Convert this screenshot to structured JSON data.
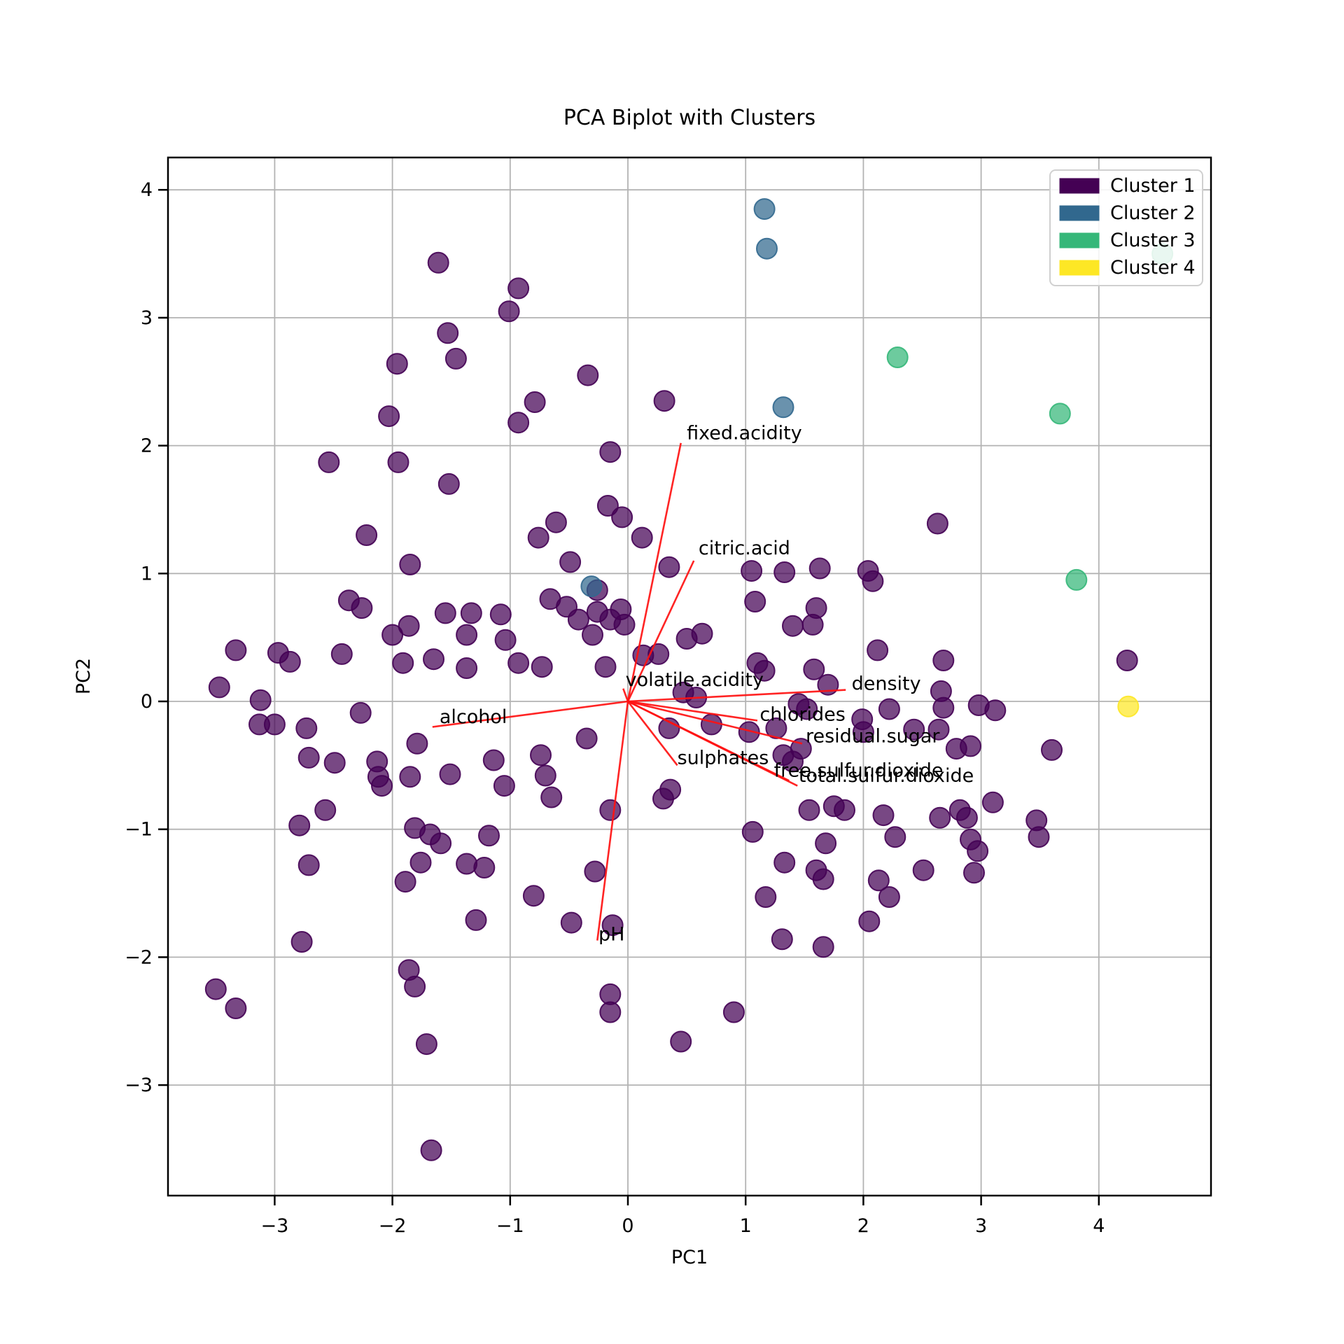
{
  "title": "PCA Biplot with Clusters",
  "axes": {
    "xlabel": "PC1",
    "ylabel": "PC2",
    "x_ticks": [
      -3,
      -2,
      -1,
      0,
      1,
      2,
      3,
      4
    ],
    "y_ticks": [
      -3,
      -2,
      -1,
      0,
      1,
      2,
      3,
      4
    ],
    "x_tick_labels": [
      "−3",
      "−2",
      "−1",
      "0",
      "1",
      "2",
      "3",
      "4"
    ],
    "y_tick_labels": [
      "−3",
      "−2",
      "−1",
      "0",
      "1",
      "2",
      "3",
      "4"
    ],
    "xlim": [
      -3.92,
      4.96
    ],
    "ylim": [
      -3.86,
      4.25
    ],
    "grid": true,
    "grid_color": "#b3b3b3",
    "spine_color": "#000000"
  },
  "legend": {
    "position": "upper right",
    "items": [
      {
        "label": "Cluster 1",
        "color": "#440154"
      },
      {
        "label": "Cluster 2",
        "color": "#31688e"
      },
      {
        "label": "Cluster 3",
        "color": "#35b779"
      },
      {
        "label": "Cluster 4",
        "color": "#fde725"
      }
    ]
  },
  "chart_data": {
    "type": "scatter",
    "title": "PCA Biplot with Clusters",
    "xlabel": "PC1",
    "ylabel": "PC2",
    "xlim": [
      -3.92,
      4.96
    ],
    "ylim": [
      -3.86,
      4.25
    ],
    "grid": true,
    "legend_position": "upper right",
    "marker_radius_px": 14.5,
    "marker_alpha": 0.72,
    "arrow_color": "#ff1111",
    "series": [
      {
        "name": "Cluster 1",
        "color": "#440154",
        "points": [
          [
            -1.61,
            3.43
          ],
          [
            -0.93,
            3.23
          ],
          [
            -1.01,
            3.05
          ],
          [
            -1.53,
            2.88
          ],
          [
            -1.46,
            2.68
          ],
          [
            -1.96,
            2.64
          ],
          [
            -0.34,
            2.55
          ],
          [
            -0.79,
            2.34
          ],
          [
            0.31,
            2.35
          ],
          [
            -2.03,
            2.23
          ],
          [
            -0.93,
            2.18
          ],
          [
            -0.15,
            1.95
          ],
          [
            -2.54,
            1.87
          ],
          [
            -1.95,
            1.87
          ],
          [
            -1.52,
            1.7
          ],
          [
            -0.17,
            1.53
          ],
          [
            -0.05,
            1.44
          ],
          [
            -0.61,
            1.4
          ],
          [
            -2.22,
            1.3
          ],
          [
            -0.76,
            1.28
          ],
          [
            0.12,
            1.28
          ],
          [
            -1.85,
            1.07
          ],
          [
            -0.49,
            1.09
          ],
          [
            0.35,
            1.05
          ],
          [
            -0.26,
            0.87
          ],
          [
            -2.37,
            0.79
          ],
          [
            -2.26,
            0.73
          ],
          [
            -1.55,
            0.69
          ],
          [
            -1.33,
            0.69
          ],
          [
            -1.08,
            0.68
          ],
          [
            -0.66,
            0.8
          ],
          [
            -0.52,
            0.74
          ],
          [
            -1.86,
            0.59
          ],
          [
            -2.0,
            0.52
          ],
          [
            -0.42,
            0.64
          ],
          [
            -0.3,
            0.52
          ],
          [
            -1.37,
            0.52
          ],
          [
            -1.04,
            0.48
          ],
          [
            -3.33,
            0.4
          ],
          [
            -2.97,
            0.38
          ],
          [
            -2.87,
            0.31
          ],
          [
            -2.43,
            0.37
          ],
          [
            -1.65,
            0.33
          ],
          [
            -1.91,
            0.3
          ],
          [
            -1.37,
            0.26
          ],
          [
            -0.93,
            0.3
          ],
          [
            -0.73,
            0.27
          ],
          [
            -0.19,
            0.27
          ],
          [
            -3.47,
            0.11
          ],
          [
            -3.12,
            0.01
          ],
          [
            -2.27,
            -0.09
          ],
          [
            -3.13,
            -0.18
          ],
          [
            -3.0,
            -0.18
          ],
          [
            -2.73,
            -0.21
          ],
          [
            -1.79,
            -0.33
          ],
          [
            -2.71,
            -0.44
          ],
          [
            -2.49,
            -0.48
          ],
          [
            -2.13,
            -0.47
          ],
          [
            -2.12,
            -0.59
          ],
          [
            -2.09,
            -0.66
          ],
          [
            -1.85,
            -0.59
          ],
          [
            -1.51,
            -0.57
          ],
          [
            -1.14,
            -0.46
          ],
          [
            -1.05,
            -0.66
          ],
          [
            -0.74,
            -0.42
          ],
          [
            -0.7,
            -0.58
          ],
          [
            -0.65,
            -0.75
          ],
          [
            -0.35,
            -0.29
          ],
          [
            -2.57,
            -0.85
          ],
          [
            -2.79,
            -0.97
          ],
          [
            -1.81,
            -0.99
          ],
          [
            -1.68,
            -1.04
          ],
          [
            -1.59,
            -1.11
          ],
          [
            -1.18,
            -1.05
          ],
          [
            -0.15,
            -0.85
          ],
          [
            -0.26,
            0.7
          ],
          [
            -0.15,
            0.64
          ],
          [
            -0.06,
            0.72
          ],
          [
            -0.03,
            0.6
          ],
          [
            0.13,
            0.36
          ],
          [
            0.26,
            0.37
          ],
          [
            0.5,
            0.49
          ],
          [
            0.63,
            0.53
          ],
          [
            0.47,
            0.07
          ],
          [
            0.58,
            0.03
          ],
          [
            0.35,
            -0.21
          ],
          [
            0.36,
            -0.69
          ],
          [
            0.3,
            -0.76
          ],
          [
            2.63,
            1.39
          ],
          [
            1.05,
            1.02
          ],
          [
            1.33,
            1.01
          ],
          [
            1.63,
            1.04
          ],
          [
            2.04,
            1.02
          ],
          [
            2.08,
            0.94
          ],
          [
            1.08,
            0.78
          ],
          [
            1.6,
            0.73
          ],
          [
            1.57,
            0.6
          ],
          [
            1.4,
            0.59
          ],
          [
            2.12,
            0.4
          ],
          [
            2.68,
            0.32
          ],
          [
            4.24,
            0.32
          ],
          [
            1.1,
            0.3
          ],
          [
            1.16,
            0.24
          ],
          [
            1.58,
            0.25
          ],
          [
            1.7,
            0.13
          ],
          [
            2.98,
            -0.03
          ],
          [
            2.66,
            0.08
          ],
          [
            2.68,
            -0.05
          ],
          [
            0.71,
            -0.18
          ],
          [
            1.03,
            -0.24
          ],
          [
            1.26,
            -0.21
          ],
          [
            1.32,
            -0.42
          ],
          [
            1.4,
            -0.47
          ],
          [
            1.47,
            -0.37
          ],
          [
            1.99,
            -0.14
          ],
          [
            2.0,
            -0.24
          ],
          [
            2.43,
            -0.22
          ],
          [
            2.64,
            -0.22
          ],
          [
            2.79,
            -0.37
          ],
          [
            2.91,
            -0.35
          ],
          [
            3.12,
            -0.07
          ],
          [
            3.6,
            -0.38
          ],
          [
            2.22,
            -0.06
          ],
          [
            1.45,
            -0.02
          ],
          [
            1.52,
            -0.06
          ],
          [
            3.1,
            -0.79
          ],
          [
            2.82,
            -0.85
          ],
          [
            2.88,
            -0.91
          ],
          [
            3.47,
            -0.93
          ],
          [
            1.75,
            -0.82
          ],
          [
            1.84,
            -0.85
          ],
          [
            1.54,
            -0.85
          ],
          [
            2.17,
            -0.89
          ],
          [
            2.65,
            -0.91
          ],
          [
            1.06,
            -1.02
          ],
          [
            1.68,
            -1.11
          ],
          [
            2.27,
            -1.06
          ],
          [
            2.91,
            -1.08
          ],
          [
            2.97,
            -1.17
          ],
          [
            3.49,
            -1.06
          ],
          [
            -2.71,
            -1.28
          ],
          [
            -1.89,
            -1.41
          ],
          [
            -1.76,
            -1.26
          ],
          [
            -1.37,
            -1.27
          ],
          [
            -1.22,
            -1.3
          ],
          [
            -0.28,
            -1.33
          ],
          [
            -0.8,
            -1.52
          ],
          [
            -1.29,
            -1.71
          ],
          [
            -0.48,
            -1.73
          ],
          [
            -0.13,
            -1.75
          ],
          [
            -2.77,
            -1.88
          ],
          [
            -3.5,
            -2.25
          ],
          [
            -3.33,
            -2.4
          ],
          [
            -1.86,
            -2.1
          ],
          [
            -1.81,
            -2.23
          ],
          [
            -0.15,
            -2.29
          ],
          [
            -0.15,
            -2.43
          ],
          [
            -1.71,
            -2.68
          ],
          [
            0.45,
            -2.66
          ],
          [
            -1.67,
            -3.51
          ],
          [
            1.33,
            -1.26
          ],
          [
            1.17,
            -1.53
          ],
          [
            1.6,
            -1.32
          ],
          [
            1.66,
            -1.39
          ],
          [
            2.13,
            -1.4
          ],
          [
            2.22,
            -1.53
          ],
          [
            2.51,
            -1.32
          ],
          [
            2.94,
            -1.34
          ],
          [
            2.05,
            -1.72
          ],
          [
            1.31,
            -1.86
          ],
          [
            1.66,
            -1.92
          ],
          [
            0.9,
            -2.43
          ]
        ]
      },
      {
        "name": "Cluster 2",
        "color": "#31688e",
        "points": [
          [
            1.16,
            3.85
          ],
          [
            1.18,
            3.54
          ],
          [
            1.32,
            2.3
          ],
          [
            -0.31,
            0.9
          ]
        ]
      },
      {
        "name": "Cluster 3",
        "color": "#35b779",
        "points": [
          [
            2.29,
            2.69
          ],
          [
            3.67,
            2.25
          ],
          [
            3.81,
            0.95
          ],
          [
            4.54,
            3.5
          ]
        ]
      },
      {
        "name": "Cluster 4",
        "color": "#fde725",
        "points": [
          [
            4.25,
            -0.04
          ]
        ]
      }
    ],
    "loadings": [
      {
        "name": "fixed.acidity",
        "tip": [
          0.45,
          2.02
        ],
        "label": [
          0.5,
          2.1
        ]
      },
      {
        "name": "citric.acid",
        "tip": [
          0.56,
          1.1
        ],
        "label": [
          0.6,
          1.2
        ]
      },
      {
        "name": "volatile.acidity",
        "tip": [
          -0.04,
          0.1
        ],
        "label": [
          -0.02,
          0.17
        ]
      },
      {
        "name": "density",
        "tip": [
          1.85,
          0.09
        ],
        "label": [
          1.9,
          0.14
        ]
      },
      {
        "name": "alcohol",
        "tip": [
          -1.66,
          -0.2
        ],
        "label": [
          -1.6,
          -0.12
        ]
      },
      {
        "name": "chlorides",
        "tip": [
          1.1,
          -0.15
        ],
        "label": [
          1.12,
          -0.1
        ]
      },
      {
        "name": "residual.sugar",
        "tip": [
          1.48,
          -0.33
        ],
        "label": [
          1.51,
          -0.27
        ]
      },
      {
        "name": "sulphates",
        "tip": [
          0.42,
          -0.5
        ],
        "label": [
          0.42,
          -0.44
        ]
      },
      {
        "name": "free.sulfur.dioxide",
        "tip": [
          1.37,
          -0.62
        ],
        "label": [
          1.24,
          -0.54
        ]
      },
      {
        "name": "total.sulfur.dioxide",
        "tip": [
          1.44,
          -0.66
        ],
        "label": [
          1.45,
          -0.58
        ]
      },
      {
        "name": "pH",
        "tip": [
          -0.26,
          -1.87
        ],
        "label": [
          -0.25,
          -1.82
        ]
      }
    ]
  }
}
